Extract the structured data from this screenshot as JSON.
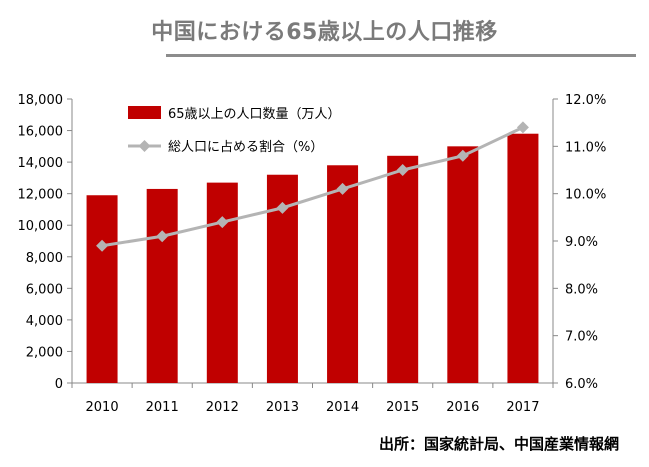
{
  "title": "中国における65歳以上の人口推移",
  "source": "出所：国家統計局、中国産業情報網",
  "chart_data": {
    "type": "bar+line",
    "categories": [
      "2010",
      "2011",
      "2012",
      "2013",
      "2014",
      "2015",
      "2016",
      "2017"
    ],
    "series": [
      {
        "name": "65歳以上の人口数量（万人）",
        "type": "bar",
        "axis": "left",
        "color": "#c00000",
        "values": [
          11900,
          12300,
          12700,
          13200,
          13800,
          14400,
          15000,
          15800
        ]
      },
      {
        "name": "総人口に占める割合（%）",
        "type": "line",
        "axis": "right",
        "color": "#b4b4b4",
        "values": [
          8.9,
          9.1,
          9.4,
          9.7,
          10.1,
          10.5,
          10.8,
          11.4
        ]
      }
    ],
    "y_left": {
      "min": 0,
      "max": 18000,
      "ticks": [
        "0",
        "2,000",
        "4,000",
        "6,000",
        "8,000",
        "10,000",
        "12,000",
        "14,000",
        "16,000",
        "18,000"
      ]
    },
    "y_right": {
      "min": 6.0,
      "max": 12.0,
      "ticks": [
        "6.0%",
        "7.0%",
        "8.0%",
        "9.0%",
        "10.0%",
        "11.0%",
        "12.0%"
      ]
    },
    "legend_placement": "top-left",
    "grid": false
  }
}
